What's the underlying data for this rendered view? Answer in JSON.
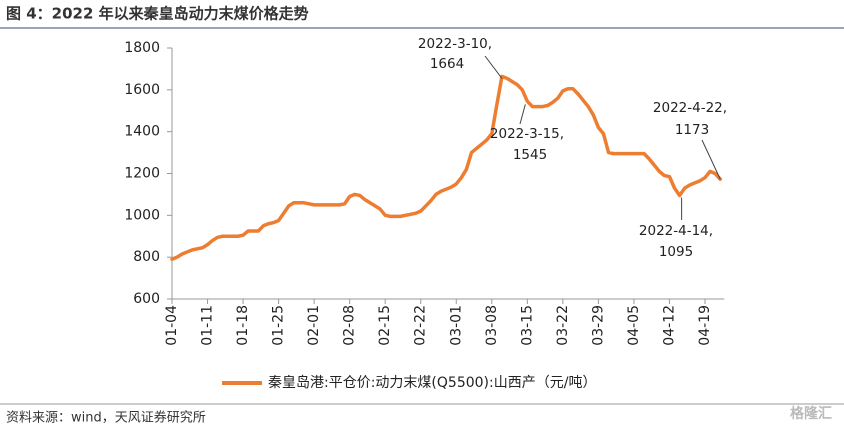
{
  "chart_data": {
    "type": "line",
    "title": "图 4：2022 年以来秦皇岛动力末煤价格走势",
    "source": "资料来源：wind，天风证券研究所",
    "watermark": "格隆汇",
    "categories": [
      "01-04",
      null,
      null,
      null,
      null,
      null,
      null,
      "01-11",
      null,
      null,
      null,
      null,
      null,
      null,
      "01-18",
      null,
      null,
      null,
      null,
      null,
      null,
      "01-25",
      null,
      null,
      null,
      null,
      null,
      null,
      "02-01",
      null,
      null,
      null,
      null,
      null,
      null,
      "02-08",
      null,
      null,
      null,
      null,
      null,
      null,
      "02-15",
      null,
      null,
      null,
      null,
      null,
      null,
      "02-22",
      null,
      null,
      null,
      null,
      null,
      null,
      "03-01",
      null,
      null,
      null,
      null,
      null,
      null,
      "03-08",
      null,
      null,
      null,
      null,
      null,
      null,
      "03-15",
      null,
      null,
      null,
      null,
      null,
      null,
      "03-22",
      null,
      null,
      null,
      null,
      null,
      null,
      "03-29",
      null,
      null,
      null,
      null,
      null,
      null,
      "04-05",
      null,
      null,
      null,
      null,
      null,
      null,
      "04-12",
      null,
      null,
      null,
      null,
      null,
      null,
      "04-19",
      null,
      null,
      null
    ],
    "series": [
      {
        "name": "秦皇岛港:平仓价:动力末煤(Q5500):山西产（元/吨）",
        "color": "#ED7D31",
        "values": [
          790,
          800,
          815,
          825,
          835,
          840,
          845,
          860,
          880,
          895,
          900,
          900,
          900,
          900,
          905,
          925,
          925,
          925,
          950,
          960,
          965,
          975,
          1010,
          1045,
          1060,
          1060,
          1060,
          1055,
          1050,
          1050,
          1050,
          1050,
          1050,
          1050,
          1055,
          1090,
          1100,
          1095,
          1075,
          1060,
          1045,
          1030,
          1000,
          995,
          995,
          995,
          1000,
          1005,
          1010,
          1020,
          1045,
          1070,
          1100,
          1115,
          1125,
          1135,
          1150,
          1180,
          1220,
          1300,
          1320,
          1340,
          1360,
          1390,
          1530,
          1664,
          1655,
          1640,
          1625,
          1600,
          1545,
          1520,
          1520,
          1520,
          1525,
          1540,
          1560,
          1595,
          1605,
          1605,
          1580,
          1550,
          1520,
          1480,
          1420,
          1390,
          1300,
          1295,
          1295,
          1295,
          1295,
          1295,
          1295,
          1295,
          1270,
          1240,
          1210,
          1190,
          1185,
          1130,
          1095,
          1130,
          1145,
          1155,
          1165,
          1180,
          1210,
          1200,
          1173
        ]
      }
    ],
    "ylim": [
      600,
      1800
    ],
    "yticks": [
      600,
      800,
      1000,
      1200,
      1400,
      1600,
      1800
    ],
    "annotations": [
      {
        "lines": [
          "2022-3-10,",
          "1664"
        ]
      },
      {
        "lines": [
          "2022-3-15,",
          "1545"
        ]
      },
      {
        "lines": [
          "2022-4-22,",
          "1173"
        ]
      },
      {
        "lines": [
          "2022-4-14,",
          "1095"
        ]
      }
    ]
  }
}
